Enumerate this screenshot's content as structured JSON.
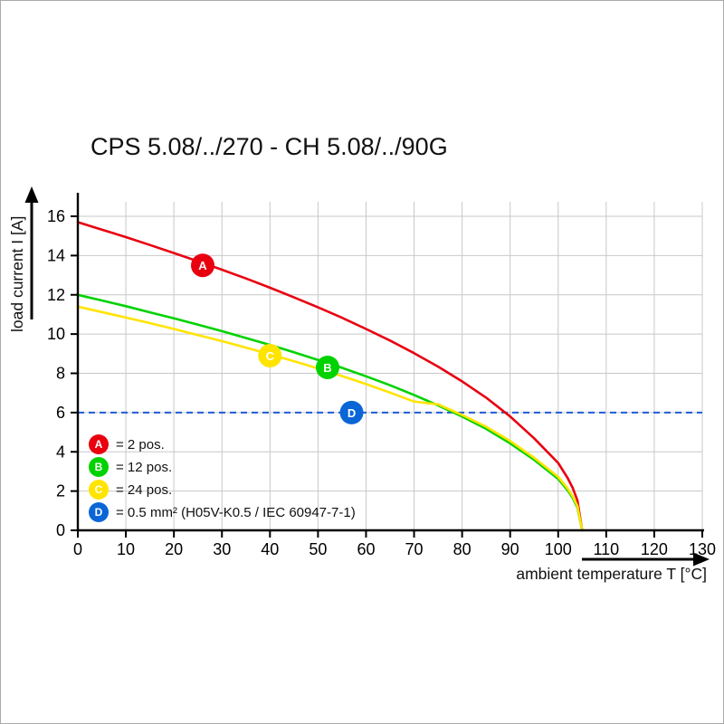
{
  "chart_data": {
    "type": "line",
    "title": "CPS 5.08/../270 - CH 5.08/../90G",
    "xlabel": "ambient temperature T [°C]",
    "ylabel": "load current I [A]",
    "xlim": [
      0,
      130
    ],
    "ylim": [
      0,
      16
    ],
    "xticks": [
      0,
      10,
      20,
      30,
      40,
      50,
      60,
      70,
      80,
      90,
      100,
      110,
      120,
      130
    ],
    "yticks": [
      0,
      2,
      4,
      6,
      8,
      10,
      12,
      14,
      16
    ],
    "grid": true,
    "series": [
      {
        "name": "A",
        "label": "2 pos.",
        "color": "#e8000f",
        "x": [
          0,
          5,
          10,
          15,
          20,
          25,
          30,
          35,
          40,
          45,
          50,
          55,
          60,
          65,
          70,
          75,
          80,
          85,
          90,
          95,
          100,
          102,
          103,
          104,
          105
        ],
        "y": [
          15.7,
          15.32,
          14.94,
          14.54,
          14.13,
          13.71,
          13.28,
          12.83,
          12.36,
          11.87,
          11.36,
          10.83,
          10.26,
          9.67,
          9.03,
          8.34,
          7.59,
          6.76,
          5.8,
          4.69,
          3.43,
          2.65,
          2.17,
          1.53,
          0
        ]
      },
      {
        "name": "B",
        "label": "12 pos.",
        "color": "#00d200",
        "x": [
          0,
          5,
          10,
          15,
          20,
          25,
          30,
          35,
          40,
          45,
          50,
          55,
          60,
          65,
          70,
          75,
          80,
          85,
          90,
          95,
          100,
          102,
          103,
          104,
          105
        ],
        "y": [
          12,
          11.71,
          11.42,
          11.11,
          10.8,
          10.48,
          10.15,
          9.8,
          9.45,
          9.07,
          8.68,
          8.28,
          7.85,
          7.39,
          6.9,
          6.37,
          5.8,
          5.17,
          4.43,
          3.59,
          2.62,
          2.03,
          1.66,
          1.17,
          0
        ]
      },
      {
        "name": "C",
        "label": "24 pos.",
        "color": "#ffe400",
        "x": [
          0,
          5,
          10,
          15,
          20,
          25,
          30,
          35,
          40,
          45,
          50,
          55,
          60,
          65,
          70,
          75,
          80,
          85,
          90,
          95,
          100,
          102,
          103,
          104,
          105
        ],
        "y": [
          11.4,
          11.12,
          10.84,
          10.56,
          10.26,
          9.95,
          9.64,
          9.31,
          8.97,
          8.62,
          8.25,
          7.86,
          7.45,
          7.02,
          6.56,
          6.42,
          5.88,
          5.28,
          4.55,
          3.7,
          2.72,
          2.12,
          1.74,
          1.25,
          0
        ]
      }
    ],
    "reference_line": {
      "name": "D",
      "y": 6,
      "style": "dashed",
      "color": "#1e5bd6",
      "label": "0.5 mm² (H05V-K0.5 / IEC 60947-7-1)"
    },
    "markers": [
      {
        "letter": "A",
        "x": 26,
        "y": 13.5,
        "color": "#e8000f"
      },
      {
        "letter": "B",
        "x": 52,
        "y": 8.3,
        "color": "#00d200"
      },
      {
        "letter": "C",
        "x": 40,
        "y": 8.9,
        "color": "#ffe400"
      },
      {
        "letter": "D",
        "x": 57,
        "y": 6,
        "color": "#0a66d6"
      }
    ],
    "legend": [
      {
        "letter": "A",
        "color": "#e8000f",
        "label": "= 2 pos."
      },
      {
        "letter": "B",
        "color": "#00d200",
        "label": "= 12 pos."
      },
      {
        "letter": "C",
        "color": "#ffe400",
        "label": "= 24 pos."
      },
      {
        "letter": "D",
        "color": "#0a66d6",
        "label": "= 0.5 mm² (H05V-K0.5 / IEC 60947-7-1)"
      }
    ],
    "legend_position": "lower left inside plot"
  }
}
